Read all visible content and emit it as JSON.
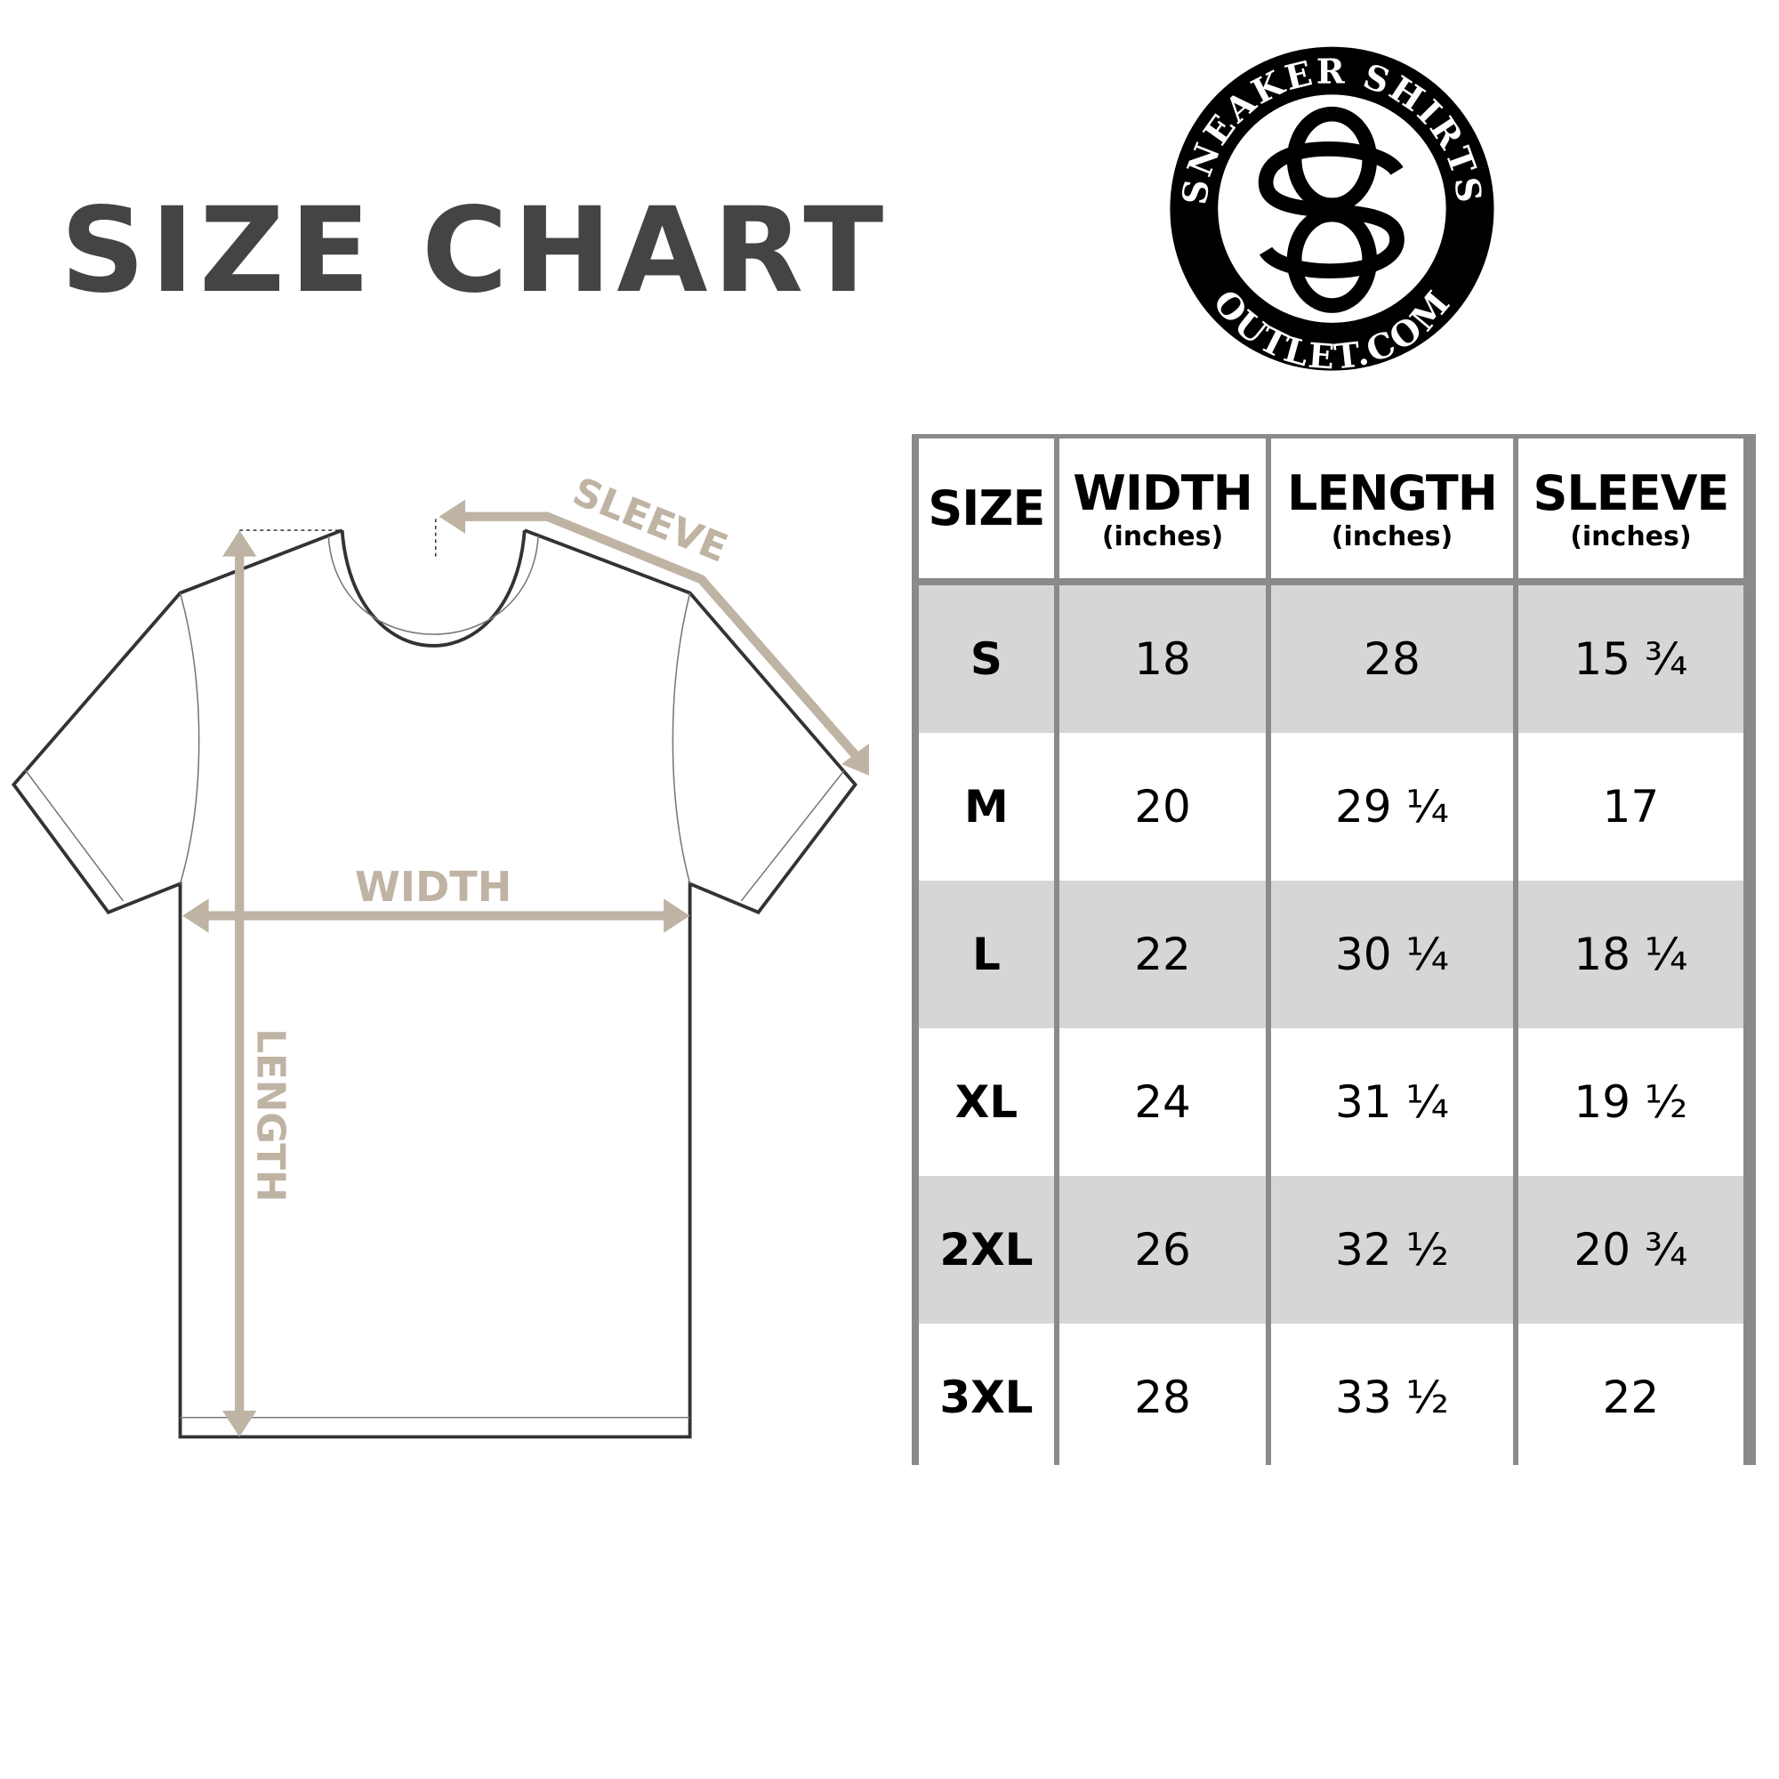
{
  "title": "SIZE CHART",
  "logo": {
    "top_text": "SNEAKER SHIRTS",
    "bottom_text": "OUTLET.COM",
    "monogram": "SO"
  },
  "diagram_labels": {
    "sleeve": "SLEEVE",
    "width": "WIDTH",
    "length": "LENGTH"
  },
  "colors": {
    "arrow": "#bfb3a4",
    "title": "#444444",
    "row_shade": "#d6d6d6",
    "grid": "#8a8a8a"
  },
  "table": {
    "headers": [
      {
        "label": "SIZE",
        "unit": ""
      },
      {
        "label": "WIDTH",
        "unit": "(inches)"
      },
      {
        "label": "LENGTH",
        "unit": "(inches)"
      },
      {
        "label": "SLEEVE",
        "unit": "(inches)"
      }
    ],
    "rows": [
      [
        "S",
        "18",
        "28",
        "15 ¾"
      ],
      [
        "M",
        "20",
        "29 ¼",
        "17"
      ],
      [
        "L",
        "22",
        "30 ¼",
        "18 ¼"
      ],
      [
        "XL",
        "24",
        "31 ¼",
        "19 ½"
      ],
      [
        "2XL",
        "26",
        "32 ½",
        "20 ¾"
      ],
      [
        "3XL",
        "28",
        "33 ½",
        "22"
      ]
    ]
  }
}
